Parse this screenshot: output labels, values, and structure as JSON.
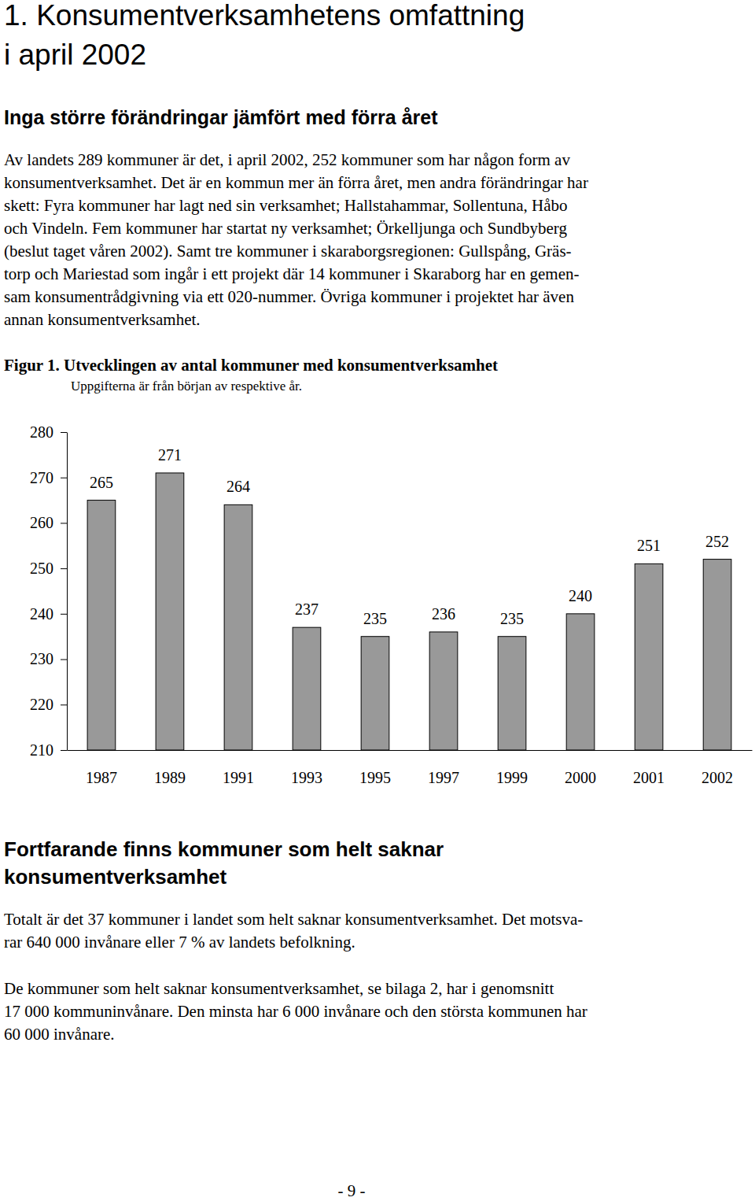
{
  "heading": [
    "1. Konsumentverksamhetens omfattning",
    "i april 2002"
  ],
  "section_1": {
    "title": [
      "Inga större förändringar jämfört med förra året"
    ],
    "paragraphs": [
      [
        "Av landets 289 kommuner är det, i april 2002, 252 kommuner som har någon form av",
        "konsumentverksamhet. Det är en kommun mer än förra året, men andra förändringar har",
        "skett: Fyra kommuner har lagt ned sin verksamhet; Hallstahammar, Sollentuna, Håbo",
        "och Vindeln. Fem kommuner har startat ny verksamhet; Örkelljunga och Sundbyberg",
        "(beslut taget våren 2002). Samt tre kommuner i skaraborgsregionen: Gullspång, Gräs-",
        "torp och Mariestad som ingår i ett projekt där 14 kommuner i Skaraborg har en gemen-",
        "sam konsumentrådgivning via ett 020-nummer. Övriga kommuner i projektet har även",
        "annan konsumentverksamhet."
      ]
    ]
  },
  "chart_data": {
    "type": "bar",
    "title": "Figur 1. Utvecklingen av antal kommuner med konsumentverksamhet",
    "subtitle": "Uppgifterna är från början av respektive år.",
    "categories": [
      "1987",
      "1989",
      "1991",
      "1993",
      "1995",
      "1997",
      "1999",
      "2000",
      "2001",
      "2002"
    ],
    "values": [
      265,
      271,
      264,
      237,
      235,
      236,
      235,
      240,
      251,
      252
    ],
    "color": "#999999",
    "ylim": [
      210,
      280
    ],
    "yticks": [
      210,
      220,
      230,
      240,
      250,
      260,
      270,
      280
    ],
    "grid": false,
    "data_labels": true
  },
  "section_2": {
    "title": [
      "Fortfarande finns kommuner som helt saknar",
      "konsumentverksamhet"
    ],
    "paragraphs": [
      [
        "Totalt är det 37 kommuner i landet som helt saknar konsumentverksamhet. Det motsva-",
        "rar 640 000 invånare eller 7 % av landets befolkning."
      ],
      [
        "De kommuner som helt saknar konsumentverksamhet, se bilaga 2, har i genomsnitt",
        "17 000 kommuninvånare. Den minsta har 6 000 invånare och den största kommunen har",
        "60 000 invånare."
      ]
    ]
  },
  "page_number": "- 9 -"
}
